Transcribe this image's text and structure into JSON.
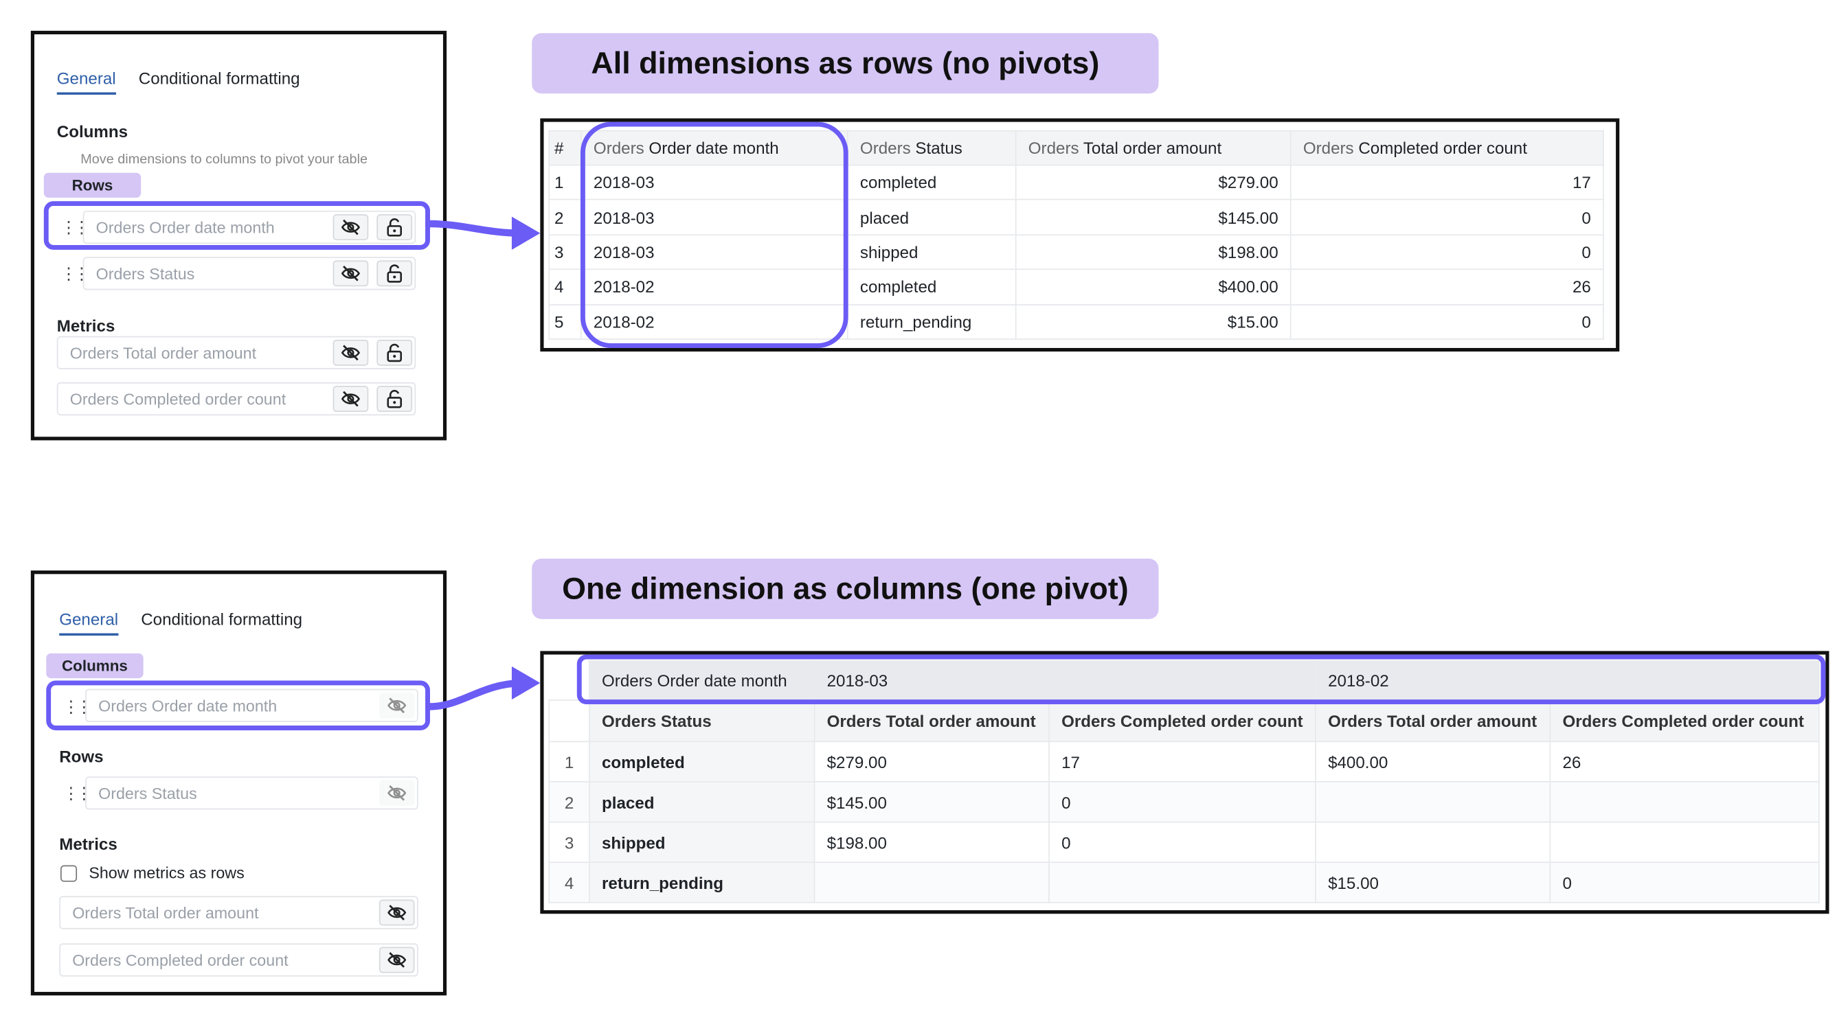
{
  "accent_color": "#6b5cf5",
  "banner_color": "#d5c6f5",
  "top": {
    "panel": {
      "tabs": [
        "General",
        "Conditional formatting"
      ],
      "columns_heading": "Columns",
      "columns_hint": "Move dimensions to columns to pivot your table",
      "rows_badge": "Rows",
      "row_fields": [
        "Orders Order date month",
        "Orders Status"
      ],
      "metrics_heading": "Metrics",
      "metric_fields": [
        "Orders Total order amount",
        "Orders Completed order count"
      ]
    },
    "banner": "All dimensions as rows (no pivots)",
    "table": {
      "headers": [
        {
          "prefix": "#",
          "name": ""
        },
        {
          "prefix": "Orders",
          "name": "Order date month"
        },
        {
          "prefix": "Orders",
          "name": "Status"
        },
        {
          "prefix": "Orders",
          "name": "Total order amount"
        },
        {
          "prefix": "Orders",
          "name": "Completed order count"
        }
      ],
      "rows": [
        [
          "1",
          "2018-03",
          "completed",
          "$279.00",
          "17"
        ],
        [
          "2",
          "2018-03",
          "placed",
          "$145.00",
          "0"
        ],
        [
          "3",
          "2018-03",
          "shipped",
          "$198.00",
          "0"
        ],
        [
          "4",
          "2018-02",
          "completed",
          "$400.00",
          "26"
        ],
        [
          "5",
          "2018-02",
          "return_pending",
          "$15.00",
          "0"
        ]
      ]
    }
  },
  "bottom": {
    "panel": {
      "tabs": [
        "General",
        "Conditional formatting"
      ],
      "columns_badge": "Columns",
      "column_fields": [
        "Orders Order date month"
      ],
      "rows_heading": "Rows",
      "row_fields": [
        "Orders Status"
      ],
      "metrics_heading": "Metrics",
      "show_metrics_as_rows": {
        "label": "Show metrics as rows",
        "checked": false
      },
      "metric_fields": [
        "Orders Total order amount",
        "Orders Completed order count"
      ]
    },
    "banner": "One dimension as columns (one pivot)",
    "table": {
      "pivot_header": [
        "Orders Order date month",
        "2018-03",
        "2018-02"
      ],
      "headers": [
        "Orders Status",
        "Orders Total order amount",
        "Orders Completed order count",
        "Orders Total order amount",
        "Orders Completed order count"
      ],
      "rows": [
        [
          "1",
          "completed",
          "$279.00",
          "17",
          "$400.00",
          "26"
        ],
        [
          "2",
          "placed",
          "$145.00",
          "0",
          "",
          ""
        ],
        [
          "3",
          "shipped",
          "$198.00",
          "0",
          "",
          ""
        ],
        [
          "4",
          "return_pending",
          "",
          "",
          "$15.00",
          "0"
        ]
      ]
    }
  }
}
